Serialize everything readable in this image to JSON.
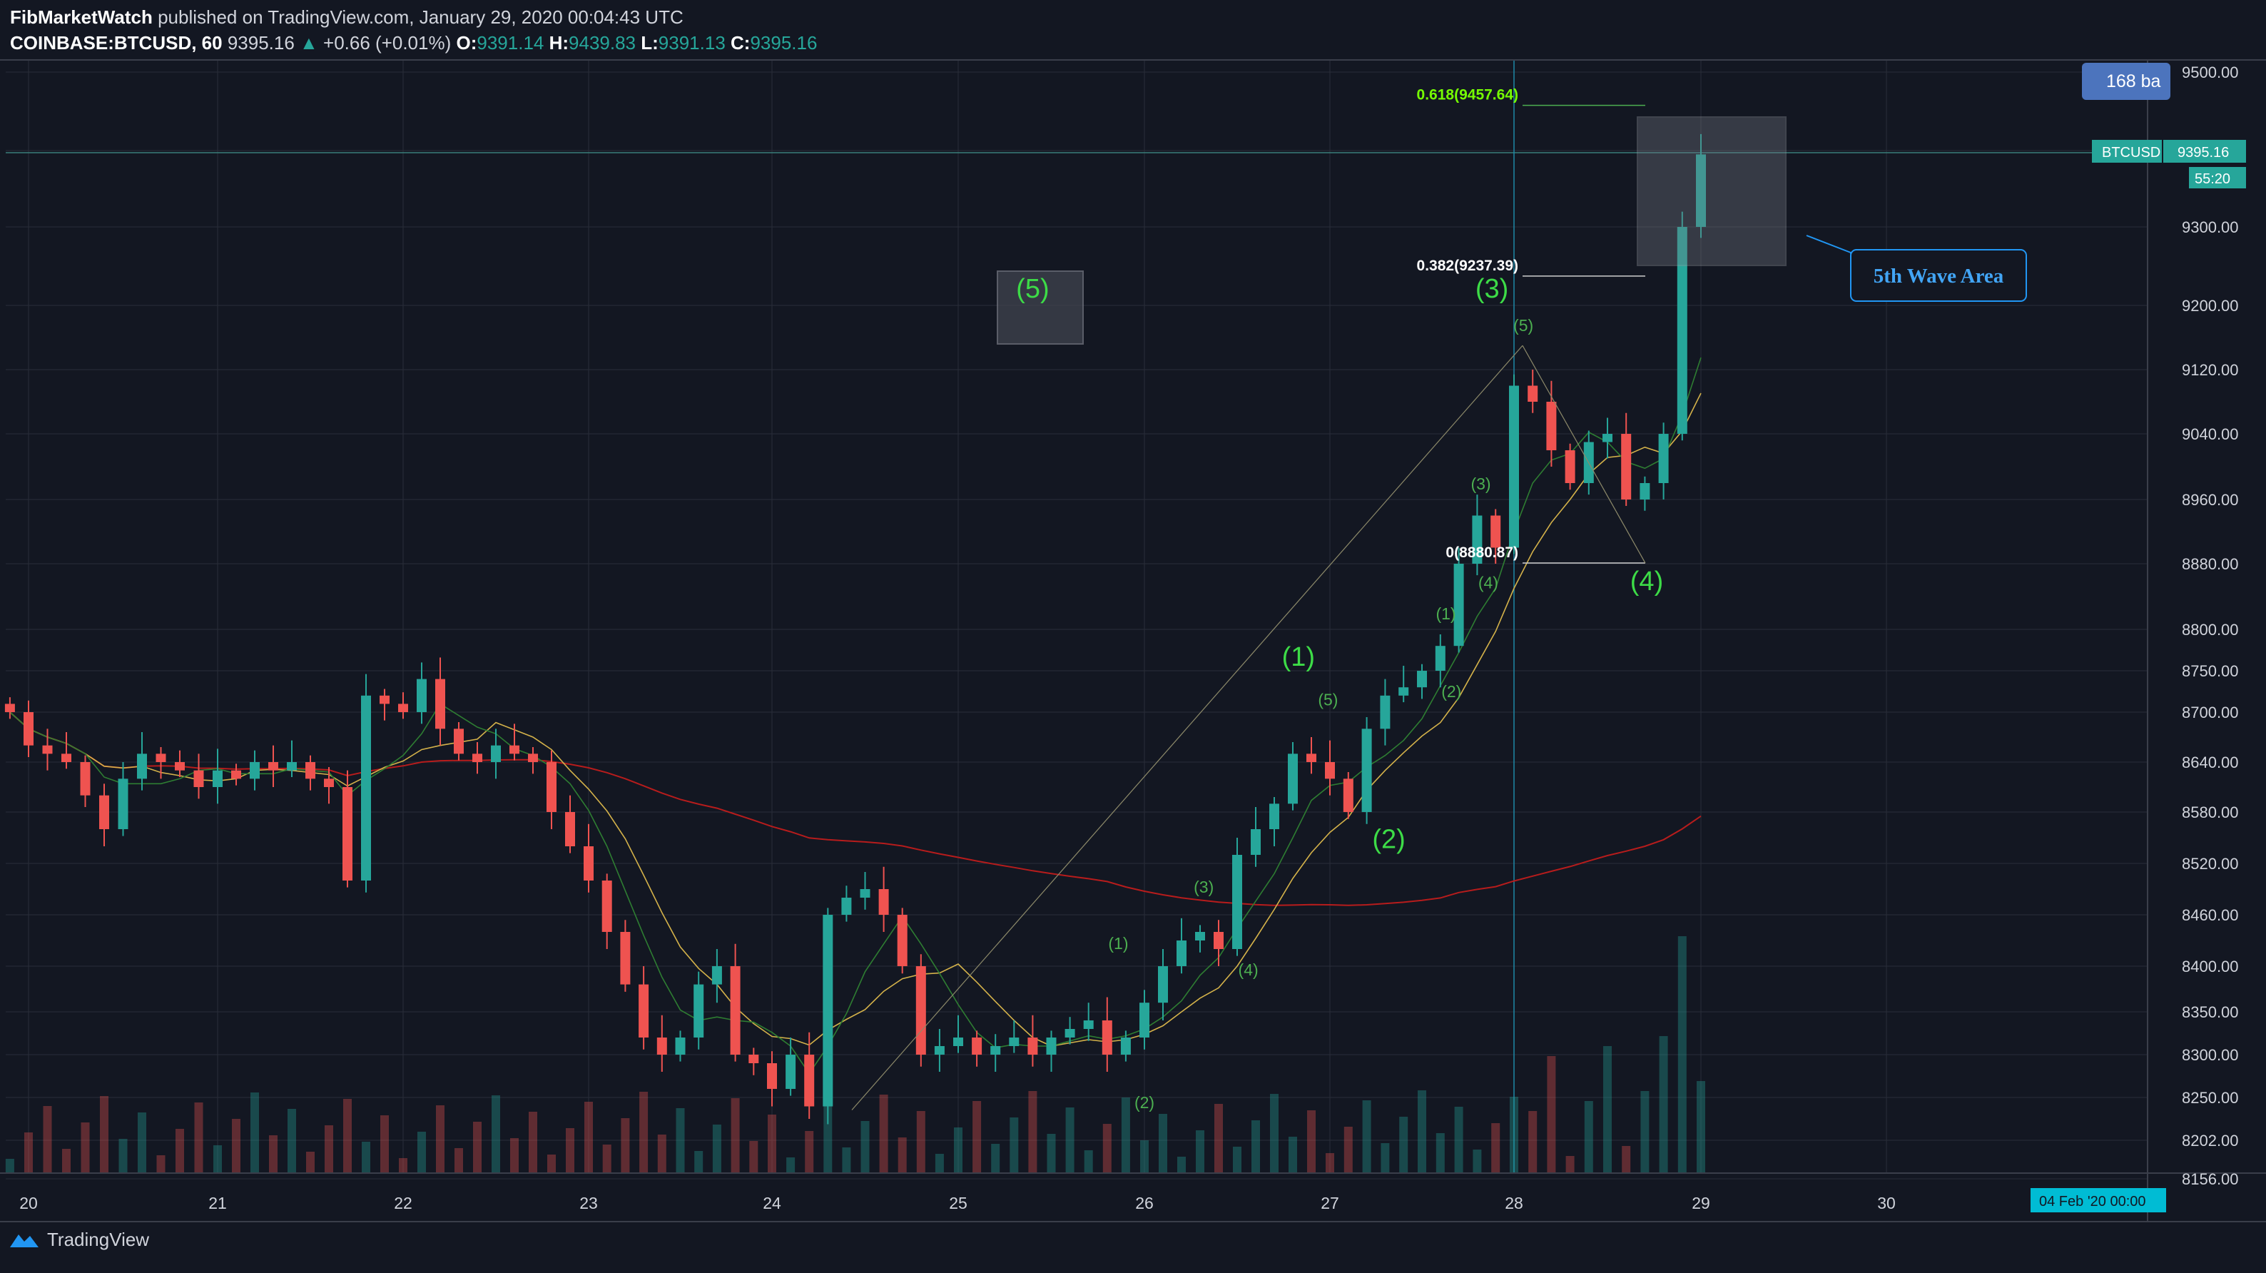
{
  "header": {
    "publisher": "FibMarketWatch",
    "published_text": "published on TradingView.com, January 29, 2020 00:04:43 UTC",
    "symbol": "COINBASE:BTCUSD, 60",
    "last": "9395.16",
    "change": "+0.66 (+0.01%)",
    "o_label": "O:",
    "o": "9391.14",
    "h_label": "H:",
    "h": "9439.83",
    "l_label": "L:",
    "l": "9391.13",
    "c_label": "C:",
    "c": "9395.16"
  },
  "badges": {
    "bars": "168 ba",
    "price_tag_symbol": "BTCUSD",
    "price_tag_value": "9395.16",
    "countdown": "55:20",
    "time_tag": "04 Feb '20   00:00"
  },
  "footer": {
    "brand": "TradingView"
  },
  "colors": {
    "background": "#131722",
    "up": "#26a69a",
    "down": "#ef5350",
    "label_green": "#4caf50",
    "fib_line": "#cfcfcf",
    "callout": "#2196f3"
  },
  "chart_data": {
    "type": "candlestick",
    "ylim": [
      8156,
      9500
    ],
    "y_ticks": [
      "9500.00",
      "9400.00",
      "9300.00",
      "9200.00",
      "9120.00",
      "9040.00",
      "8960.00",
      "8880.00",
      "8800.00",
      "8750.00",
      "8700.00",
      "8640.00",
      "8580.00",
      "8520.00",
      "8460.00",
      "8400.00",
      "8350.00",
      "8300.00",
      "8250.00",
      "8202.00",
      "8156.00"
    ],
    "x_ticks": [
      "20",
      "21",
      "22",
      "23",
      "24",
      "25",
      "26",
      "27",
      "28",
      "29",
      "30"
    ],
    "x_domain_days": [
      19.9,
      31.5
    ],
    "candles_x_day": [
      19.9,
      20.0,
      20.1,
      20.2,
      20.3,
      20.4,
      20.5,
      20.6,
      20.7,
      20.8,
      20.9,
      21.0,
      21.1,
      21.2,
      21.3,
      21.4,
      21.5,
      21.6,
      21.7,
      21.8,
      21.9,
      22.0,
      22.1,
      22.2,
      22.3,
      22.4,
      22.5,
      22.6,
      22.7,
      22.8,
      22.9,
      23.0,
      23.1,
      23.2,
      23.3,
      23.4,
      23.5,
      23.6,
      23.7,
      23.8,
      23.9,
      24.0,
      24.1,
      24.2,
      24.3,
      24.4,
      24.5,
      24.6,
      24.7,
      24.8,
      24.9,
      25.0,
      25.1,
      25.2,
      25.3,
      25.4,
      25.5,
      25.6,
      25.7,
      25.8,
      25.9,
      26.0,
      26.1,
      26.2,
      26.3,
      26.4,
      26.5,
      26.6,
      26.7,
      26.8,
      26.9,
      27.0,
      27.1,
      27.2,
      27.3,
      27.4,
      27.5,
      27.6,
      27.7,
      27.8,
      27.9,
      28.0,
      28.1,
      28.2,
      28.3,
      28.4,
      28.5,
      28.6,
      28.7,
      28.8,
      28.9,
      29.0
    ],
    "close": [
      8700,
      8660,
      8650,
      8640,
      8600,
      8560,
      8620,
      8650,
      8640,
      8630,
      8610,
      8630,
      8620,
      8640,
      8630,
      8640,
      8620,
      8610,
      8500,
      8720,
      8710,
      8700,
      8740,
      8680,
      8650,
      8640,
      8660,
      8650,
      8640,
      8580,
      8540,
      8500,
      8440,
      8380,
      8320,
      8300,
      8320,
      8380,
      8400,
      8300,
      8290,
      8260,
      8300,
      8240,
      8460,
      8480,
      8490,
      8460,
      8400,
      8300,
      8310,
      8320,
      8300,
      8310,
      8320,
      8300,
      8320,
      8330,
      8340,
      8300,
      8320,
      8360,
      8400,
      8430,
      8440,
      8420,
      8530,
      8560,
      8590,
      8650,
      8640,
      8620,
      8580,
      8680,
      8720,
      8730,
      8750,
      8780,
      8880,
      8940,
      8900,
      9100,
      9080,
      9020,
      8980,
      9030,
      9040,
      8960,
      8980,
      9040,
      9300,
      9395
    ],
    "fib_levels": [
      {
        "label": "0.618(9457.64)",
        "value": 9457.64
      },
      {
        "label": "0.382(9237.39)",
        "value": 9237.39
      },
      {
        "label": "0(8880.87)",
        "value": 8880.87
      }
    ],
    "wave_labels": [
      {
        "text": "(5)",
        "x_day": 25.4,
        "y": 9210,
        "size": "large",
        "boxed": true
      },
      {
        "text": "(1)",
        "x_day": 26.83,
        "y": 8756,
        "size": "large"
      },
      {
        "text": "(2)",
        "x_day": 27.32,
        "y": 8538,
        "size": "large"
      },
      {
        "text": "(3)",
        "x_day": 27.88,
        "y": 9210,
        "size": "large"
      },
      {
        "text": "(4)",
        "x_day": 28.71,
        "y": 8848,
        "size": "large"
      },
      {
        "text": "(1)",
        "x_day": 25.86,
        "y": 8420,
        "size": "small"
      },
      {
        "text": "(2)",
        "x_day": 26.0,
        "y": 8238,
        "size": "small"
      },
      {
        "text": "(3)",
        "x_day": 26.32,
        "y": 8486,
        "size": "small"
      },
      {
        "text": "(4)",
        "x_day": 26.56,
        "y": 8390,
        "size": "small"
      },
      {
        "text": "(5)",
        "x_day": 26.99,
        "y": 8708,
        "size": "small"
      },
      {
        "text": "(1)",
        "x_day": 27.63,
        "y": 8812,
        "size": "small"
      },
      {
        "text": "(2)",
        "x_day": 27.66,
        "y": 8718,
        "size": "small"
      },
      {
        "text": "(3)",
        "x_day": 27.82,
        "y": 8972,
        "size": "small"
      },
      {
        "text": "(4)",
        "x_day": 27.86,
        "y": 8850,
        "size": "small"
      },
      {
        "text": "(5)",
        "x_day": 28.05,
        "y": 9168,
        "size": "small"
      }
    ],
    "callout_text": "5th Wave Area",
    "volume_note": "volume histogram shown along bottom"
  }
}
